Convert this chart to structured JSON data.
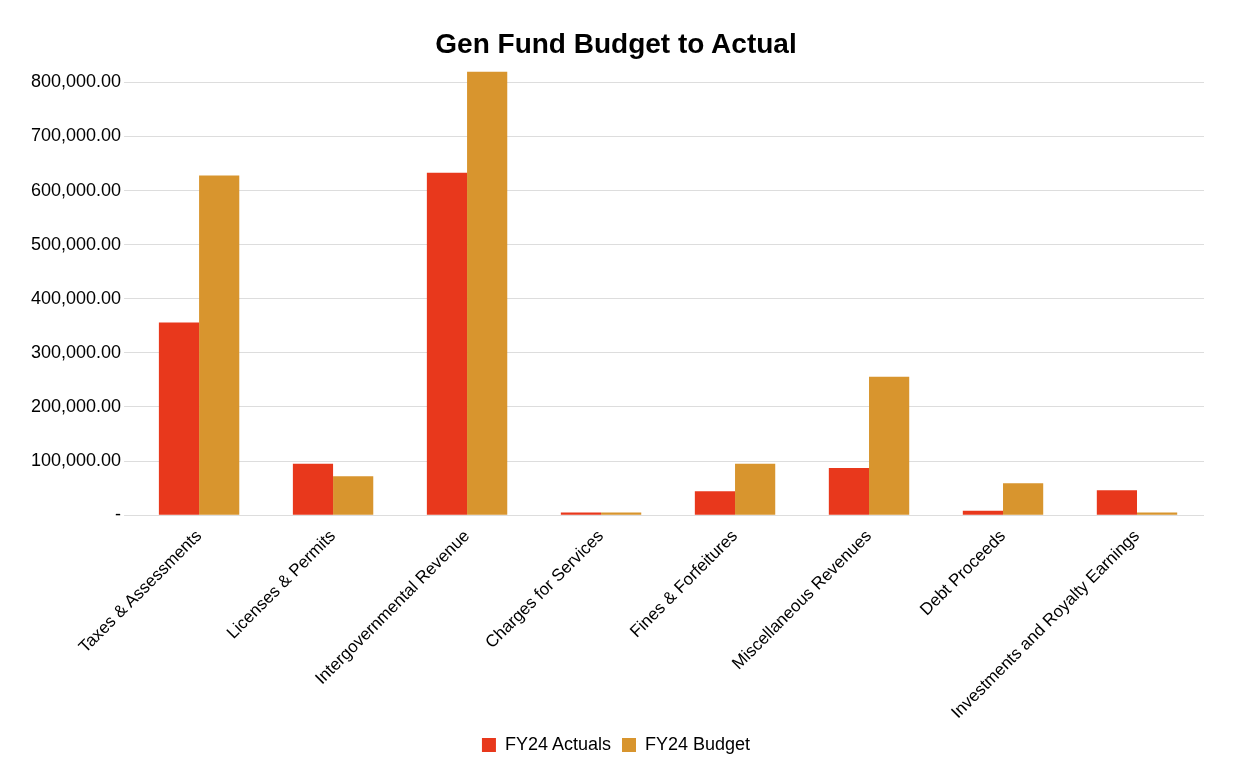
{
  "chart_data": {
    "type": "bar",
    "title": "Gen Fund Budget to Actual",
    "categories": [
      "Taxes & Assessments",
      "Licenses & Permits",
      "Intergovernmental Revenue",
      "Charges for Services",
      "Fines & Forfeitures",
      "Miscellaneous Revenues",
      "Debt Proceeds",
      "Investments and Royalty Earnings"
    ],
    "series": [
      {
        "name": "FY24 Actuals",
        "color": "#e8381c",
        "values": [
          356000,
          95000,
          633000,
          5000,
          44000,
          87000,
          8000,
          46000
        ]
      },
      {
        "name": "FY24 Budget",
        "color": "#d8952e",
        "values": [
          628000,
          72000,
          820000,
          5000,
          95000,
          256000,
          59000,
          5000
        ]
      }
    ],
    "ylim": [
      0,
      820000
    ],
    "yticks": [
      {
        "value": 0,
        "label": "-"
      },
      {
        "value": 100000,
        "label": "100,000.00"
      },
      {
        "value": 200000,
        "label": "200,000.00"
      },
      {
        "value": 300000,
        "label": "300,000.00"
      },
      {
        "value": 400000,
        "label": "400,000.00"
      },
      {
        "value": 500000,
        "label": "500,000.00"
      },
      {
        "value": 600000,
        "label": "600,000.00"
      },
      {
        "value": 700000,
        "label": "700,000.00"
      },
      {
        "value": 800000,
        "label": "800,000.00"
      }
    ],
    "grid": "y",
    "legend": "bottom"
  }
}
